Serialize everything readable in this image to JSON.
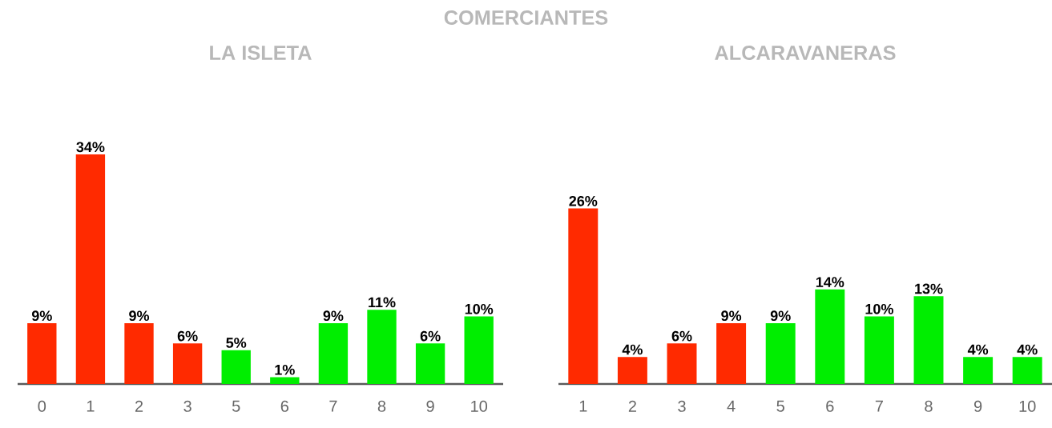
{
  "chart_data": [
    {
      "type": "bar",
      "title": "COMERCIANTES",
      "subtitle": "LA ISLETA",
      "categories": [
        "0",
        "1",
        "2",
        "3",
        "5",
        "6",
        "7",
        "8",
        "9",
        "10"
      ],
      "values": [
        9,
        34,
        9,
        6,
        5,
        1,
        9,
        11,
        6,
        10
      ],
      "value_labels": [
        "9%",
        "34%",
        "9%",
        "6%",
        "5%",
        "1%",
        "9%",
        "11%",
        "6%",
        "10%"
      ],
      "colors": [
        "#ff2a00",
        "#ff2a00",
        "#ff2a00",
        "#ff2a00",
        "#00ee00",
        "#00ee00",
        "#00ee00",
        "#00ee00",
        "#00ee00",
        "#00ee00"
      ]
    },
    {
      "type": "bar",
      "subtitle": "ALCARAVANERAS",
      "categories": [
        "1",
        "2",
        "3",
        "4",
        "5",
        "6",
        "7",
        "8",
        "9",
        "10"
      ],
      "values": [
        26,
        4,
        6,
        9,
        9,
        14,
        10,
        13,
        4,
        4
      ],
      "value_labels": [
        "26%",
        "4%",
        "6%",
        "9%",
        "9%",
        "14%",
        "10%",
        "13%",
        "4%",
        "4%"
      ],
      "colors": [
        "#ff2a00",
        "#ff2a00",
        "#ff2a00",
        "#ff2a00",
        "#00ee00",
        "#00ee00",
        "#00ee00",
        "#00ee00",
        "#00ee00",
        "#00ee00"
      ]
    }
  ]
}
